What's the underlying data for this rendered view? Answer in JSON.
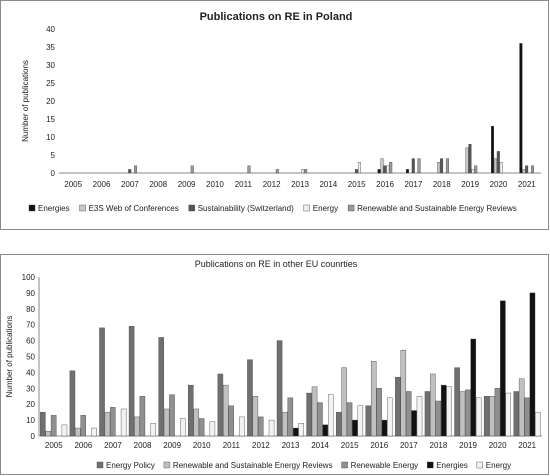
{
  "chart_data": [
    {
      "type": "bar",
      "title": "Publications on RE in Poland",
      "xlabel": "",
      "ylabel": "Number of publications",
      "ylim": [
        0,
        40
      ],
      "yticks": [
        0,
        5,
        10,
        15,
        20,
        25,
        30,
        35,
        40
      ],
      "grid": false,
      "legend_position": "bottom",
      "categories": [
        "2005",
        "2006",
        "2007",
        "2008",
        "2009",
        "2010",
        "2011",
        "2012",
        "2013",
        "2014",
        "2015",
        "2016",
        "2017",
        "2018",
        "2019",
        "2020",
        "2021"
      ],
      "series": [
        {
          "name": "Energies",
          "color": "#111111",
          "values": [
            0,
            0,
            0,
            0,
            0,
            0,
            0,
            0,
            0,
            0,
            0,
            1,
            1,
            0,
            0,
            13,
            36
          ]
        },
        {
          "name": "E3S Web of Conferences",
          "color": "#c8c8c8",
          "values": [
            0,
            0,
            0,
            0,
            0,
            0,
            0,
            0,
            0,
            0,
            0,
            4,
            0,
            3,
            7,
            4,
            1
          ]
        },
        {
          "name": "Sustainability (Switzerland)",
          "color": "#555555",
          "values": [
            0,
            0,
            1,
            0,
            0,
            0,
            0,
            0,
            0,
            0,
            1,
            2,
            4,
            4,
            8,
            6,
            2
          ]
        },
        {
          "name": "Energy",
          "color": "#eeeeee",
          "values": [
            0,
            0,
            0,
            0,
            0,
            0,
            0,
            0,
            1,
            0,
            3,
            2,
            0,
            0,
            1,
            3,
            0
          ]
        },
        {
          "name": "Renewable and Sustainable Energy Reviews",
          "color": "#9a9a9a",
          "values": [
            0,
            0,
            2,
            0,
            2,
            0,
            2,
            1,
            1,
            0,
            0,
            3,
            4,
            4,
            2,
            0,
            2
          ]
        }
      ]
    },
    {
      "type": "bar",
      "title": "Publications on RE in other EU counrties",
      "xlabel": "",
      "ylabel": "Number of publications",
      "ylim": [
        0,
        100
      ],
      "yticks": [
        0,
        10,
        20,
        30,
        40,
        50,
        60,
        70,
        80,
        90,
        100
      ],
      "grid": false,
      "legend_position": "bottom",
      "categories": [
        "2005",
        "2006",
        "2007",
        "2008",
        "2009",
        "2010",
        "2011",
        "2012",
        "2013",
        "2014",
        "2015",
        "2016",
        "2017",
        "2018",
        "2019",
        "2020",
        "2021"
      ],
      "series": [
        {
          "name": "Energy Policy",
          "color": "#707070",
          "values": [
            15,
            41,
            68,
            69,
            62,
            32,
            39,
            48,
            60,
            27,
            15,
            19,
            37,
            28,
            43,
            25,
            28
          ]
        },
        {
          "name": "Renewable and Sustainable Energy Reviews",
          "color": "#c0c0c0",
          "values": [
            3,
            5,
            15,
            12,
            17,
            17,
            32,
            25,
            15,
            31,
            43,
            47,
            54,
            39,
            28,
            25,
            36
          ]
        },
        {
          "name": "Renewable Energy",
          "color": "#909090",
          "values": [
            13,
            13,
            18,
            25,
            26,
            11,
            19,
            12,
            24,
            21,
            21,
            30,
            28,
            22,
            29,
            30,
            24
          ]
        },
        {
          "name": "Energies",
          "color": "#111111",
          "values": [
            0,
            0,
            0,
            0,
            0,
            0,
            0,
            0,
            5,
            7,
            10,
            10,
            16,
            32,
            61,
            85,
            90
          ]
        },
        {
          "name": "Energy",
          "color": "#f2f2f2",
          "values": [
            7,
            5,
            17,
            8,
            11,
            9,
            12,
            10,
            8,
            26,
            19,
            24,
            25,
            31,
            24,
            27,
            15
          ]
        }
      ]
    }
  ]
}
